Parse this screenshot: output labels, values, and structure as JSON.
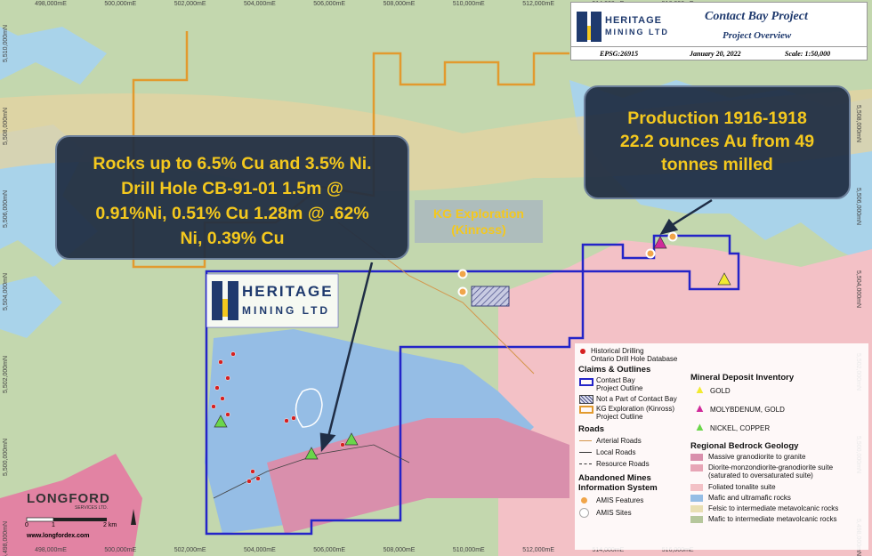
{
  "grid": {
    "eastings": [
      "498,000mE",
      "500,000mE",
      "502,000mE",
      "504,000mE",
      "506,000mE",
      "508,000mE",
      "510,000mE",
      "512,000mE",
      "514,000mE",
      "516,000mE"
    ],
    "northings": [
      "5,510,000mN",
      "5,508,000mN",
      "5,506,000mN",
      "5,504,000mN",
      "5,502,000mN",
      "5,500,000mN",
      "5,498,000mN"
    ]
  },
  "logo": {
    "line1": "HERITAGE",
    "line2": "MINING LTD"
  },
  "title_block": {
    "title": "Contact Bay Project",
    "subtitle": "Project Overview",
    "epsg": "EPSG:26915",
    "date": "January 20, 2022",
    "scale": "Scale: 1:50,000"
  },
  "callouts": [
    {
      "lines": [
        "Rocks up to 6.5% Cu and 3.5% Ni.",
        "Drill Hole CB-91-01 1.5m @",
        "0.91%Ni, 0.51% Cu 1.28m @ .62%",
        "Ni, 0.39% Cu"
      ]
    },
    {
      "lines": [
        "Production 1916-1918",
        "22.2 ounces Au from 49",
        "tonnes milled"
      ]
    }
  ],
  "kg_label": [
    "KG Exploration",
    "(Kinross)"
  ],
  "legend": {
    "drilling": [
      "Historical Drilling",
      "Ontario Drill Hole Database"
    ],
    "claims": {
      "heading": "Claims & Outlines",
      "items": [
        [
          "Contact Bay",
          "Project Outline"
        ],
        [
          "Not a Part of Contact Bay"
        ],
        [
          "KG Exploration (Kinross)",
          "Project Outline"
        ]
      ]
    },
    "roads": {
      "heading": "Roads",
      "items": [
        "Arterial Roads",
        "Local Roads",
        "Resource Roads"
      ]
    },
    "amis": {
      "heading": [
        "Abandoned Mines",
        "Information System"
      ],
      "items": [
        "AMIS Features",
        "AMIS Sites"
      ]
    },
    "deposits": {
      "heading": "Mineral Deposit Inventory",
      "items": [
        "GOLD",
        "MOLYBDENUM, GOLD",
        "NICKEL, COPPER"
      ]
    },
    "geology": {
      "heading": "Regional Bedrock Geology",
      "items": [
        "Massive granodiorite to granite",
        [
          "Diorite-monzondiorite-granodiorite suite",
          "(saturated to oversaturated suite)"
        ],
        "Foliated tonalite suite",
        "Mafic and ultramafic rocks",
        "Felsic to intermediate metavolcanic rocks",
        "Mafic to intermediate metavolcanic rocks"
      ]
    }
  },
  "longford": {
    "name": "LONGFORD",
    "sub": "SERVICES LTD.",
    "scale": [
      "0",
      "1",
      "2 km"
    ],
    "url": "www.longfordex.com"
  }
}
